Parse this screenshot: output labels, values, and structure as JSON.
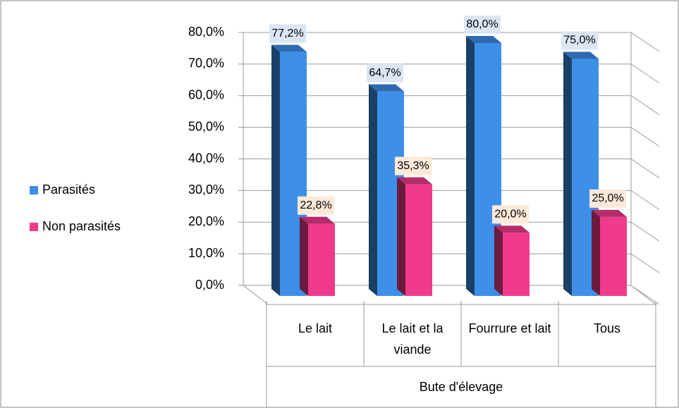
{
  "chart_data": {
    "type": "bar3d",
    "x_label": "Bute d'élevage",
    "categories": [
      "Le lait",
      "Le lait et la viande",
      "Fourrure et lait",
      "Tous"
    ],
    "series": [
      {
        "name": "Parasités",
        "color": "#3d8fe8",
        "values": [
          77.2,
          64.7,
          80.0,
          75.0
        ],
        "value_labels": [
          "77,2%",
          "64,7%",
          "80,0%",
          "75,0%"
        ]
      },
      {
        "name": "Non parasités",
        "color": "#f03a8a",
        "values": [
          22.8,
          35.3,
          20.0,
          25.0
        ],
        "value_labels": [
          "22,8%",
          "35,3%",
          "20,0%",
          "25,0%"
        ]
      }
    ],
    "ylim": [
      0,
      80
    ],
    "yticks": [
      {
        "value": 0,
        "label": "0,0%"
      },
      {
        "value": 10,
        "label": "10,0%"
      },
      {
        "value": 20,
        "label": "20,0%"
      },
      {
        "value": 30,
        "label": "30,0%"
      },
      {
        "value": 40,
        "label": "40,0%"
      },
      {
        "value": 50,
        "label": "50,0%"
      },
      {
        "value": 60,
        "label": "60,0%"
      },
      {
        "value": 70,
        "label": "70,0%"
      },
      {
        "value": 80,
        "label": "80,0%"
      }
    ],
    "grid": true,
    "legend": "left"
  }
}
